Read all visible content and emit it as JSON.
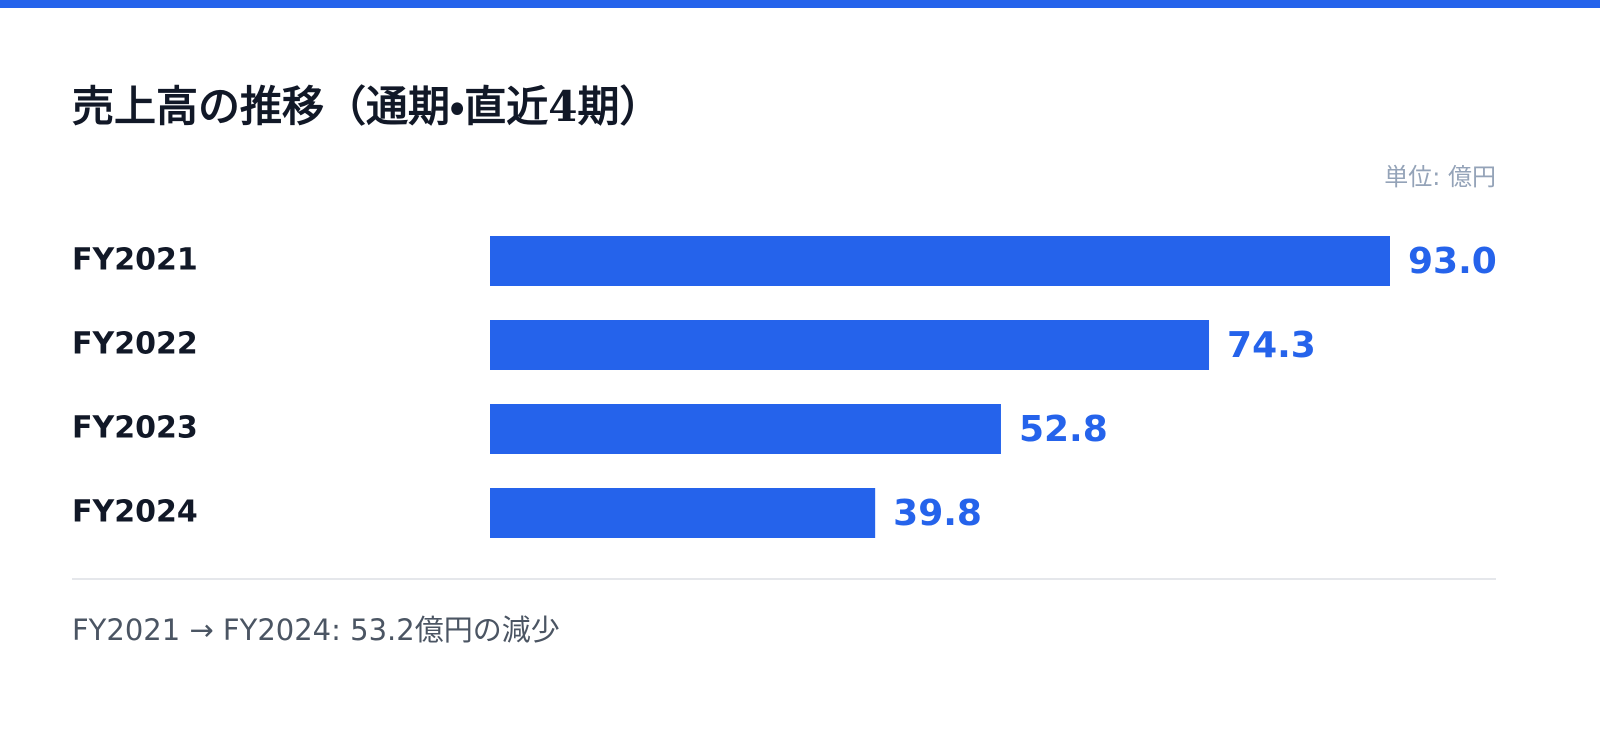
{
  "chart_data": {
    "type": "bar",
    "orientation": "horizontal",
    "title": "売上高の推移（通期・直近4期）",
    "unit_label": "単位: 億円",
    "categories": [
      "FY2021",
      "FY2022",
      "FY2023",
      "FY2024"
    ],
    "values": [
      93.0,
      74.3,
      52.8,
      39.8
    ],
    "value_labels": [
      "93.0",
      "74.3",
      "52.8",
      "39.8"
    ],
    "color": "#2563eb",
    "annotation": "FY2021 → FY2024: 53.2億円の減少"
  }
}
